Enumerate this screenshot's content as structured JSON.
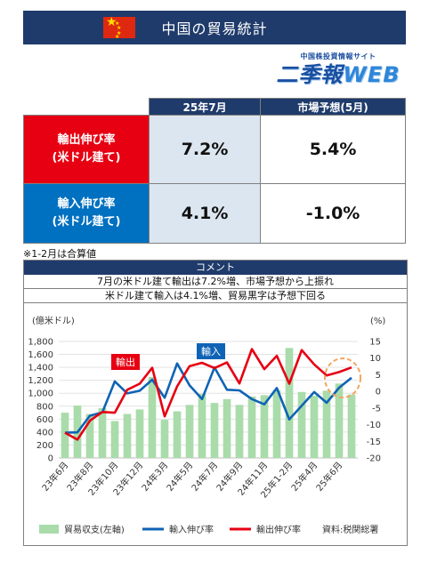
{
  "header": {
    "title": "中国の貿易統計"
  },
  "logo": {
    "top": "中国株投資情報サイト",
    "main_a": "二季報",
    "main_b": "WEB"
  },
  "table": {
    "col1": "25年7月",
    "col2": "市場予想(5月)",
    "rows": [
      {
        "label1": "輸出伸び率",
        "label2": "(米ドル建て)",
        "actual": "7.2%",
        "forecast": "5.4%"
      },
      {
        "label1": "輸入伸び率",
        "label2": "(米ドル建て)",
        "actual": "4.1%",
        "forecast": "-1.0%"
      }
    ]
  },
  "note": "※1-2月は合算値",
  "comment": {
    "head": "コメント",
    "line1": "7月の米ドル建て輸出は7.2%増、市場予想から上振れ",
    "line2": "米ドル建て輸入は4.1%増、貿易黒字は予想下回る"
  },
  "chart_data": {
    "type": "bar+line",
    "left_unit": "(億米ドル)",
    "right_unit": "(%)",
    "left_ylim": [
      0,
      1800
    ],
    "left_ticks": [
      "0",
      "200",
      "400",
      "600",
      "800",
      "1,000",
      "1,200",
      "1,400",
      "1,600",
      "1,800"
    ],
    "right_ylim": [
      -20,
      15
    ],
    "right_ticks": [
      "-20",
      "-15",
      "-10",
      "-5",
      "0",
      "5",
      "10",
      "15"
    ],
    "x_tick_labels": [
      "23年6月",
      "23年8月",
      "23年10月",
      "23年12月",
      "24年3月",
      "24年5月",
      "24年7月",
      "24年9月",
      "24年11月",
      "25年1-2月",
      "25年4月",
      "25年6月"
    ],
    "categories": [
      "23年6月",
      "23年7月",
      "23年8月",
      "23年9月",
      "23年10月",
      "23年11月",
      "23年12月",
      "24年1-2月",
      "24年3月",
      "24年4月",
      "24年5月",
      "24年6月",
      "24年7月",
      "24年8月",
      "24年9月",
      "24年10月",
      "24年11月",
      "24年12月",
      "25年1-2月",
      "25年3月",
      "25年4月",
      "25年5月",
      "25年6月",
      "25年7月"
    ],
    "series": [
      {
        "name": "貿易収支(左軸)",
        "type": "bar",
        "axis": "left",
        "color": "#a9dcaa",
        "values": [
          700,
          810,
          680,
          770,
          570,
          680,
          750,
          1250,
          590,
          720,
          820,
          990,
          850,
          910,
          820,
          950,
          970,
          1050,
          1700,
          1020,
          960,
          1040,
          1150,
          980
        ]
      },
      {
        "name": "輸入伸び率",
        "type": "line",
        "axis": "right",
        "color": "#0f63b5",
        "values": [
          -12.4,
          -12.3,
          -7.3,
          -6.3,
          3.0,
          -0.6,
          0.2,
          3.5,
          -1.9,
          8.4,
          1.8,
          -2.3,
          7.2,
          0.5,
          0.3,
          -2.3,
          -3.9,
          1.0,
          -8.4,
          -4.3,
          -0.2,
          -3.4,
          1.1,
          4.1
        ]
      },
      {
        "name": "輸出伸び率",
        "type": "line",
        "axis": "right",
        "color": "#e60012",
        "values": [
          -12.4,
          -14.5,
          -8.8,
          -6.2,
          -6.4,
          0.5,
          2.3,
          7.1,
          -7.5,
          1.5,
          7.6,
          8.6,
          7.0,
          8.7,
          2.4,
          12.7,
          6.7,
          10.7,
          2.3,
          12.4,
          8.1,
          4.8,
          5.8,
          7.2
        ]
      }
    ],
    "annotations": [
      {
        "text": "輸出",
        "color": "#e60012"
      },
      {
        "text": "輸入",
        "color": "#0f63b5"
      }
    ],
    "source": "資料:税関総署",
    "legend_position": "bottom"
  }
}
